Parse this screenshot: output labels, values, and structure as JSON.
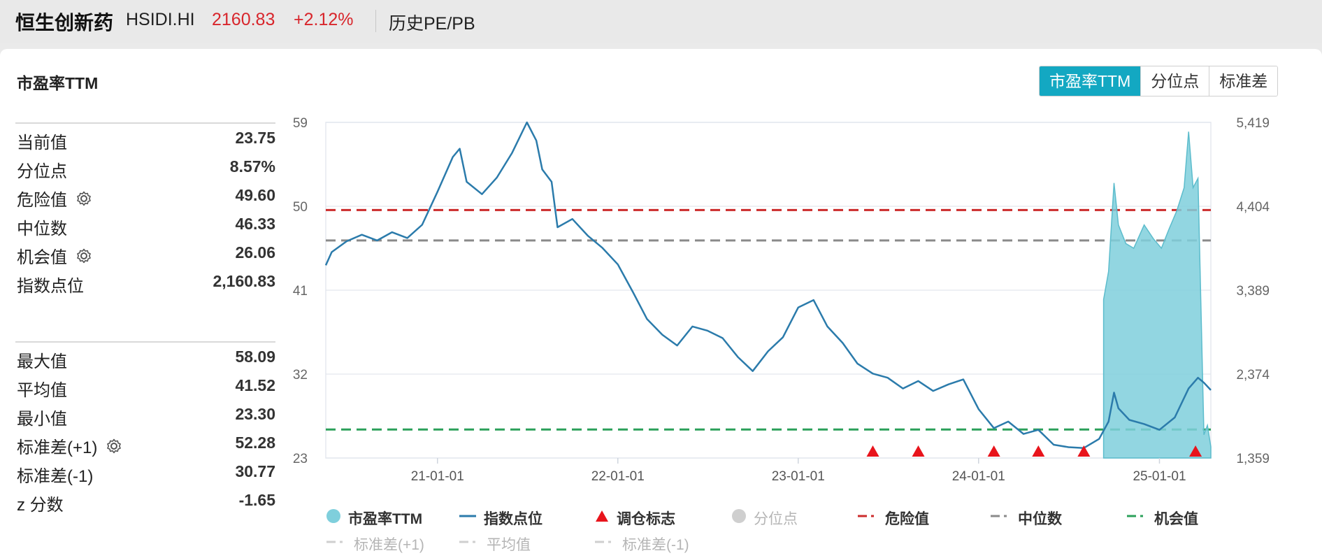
{
  "header": {
    "name": "恒生创新药",
    "code": "HSIDI.HI",
    "price": "2160.83",
    "change": "+2.12%",
    "link": "历史PE/PB"
  },
  "panel": {
    "title": "市盈率TTM",
    "tabs": [
      {
        "label": "市盈率TTM",
        "active": true
      },
      {
        "label": "分位点",
        "active": false
      },
      {
        "label": "标准差",
        "active": false
      }
    ]
  },
  "stats_top": [
    {
      "label": "当前值",
      "value": "23.75",
      "gear": false
    },
    {
      "label": "分位点",
      "value": "8.57%",
      "gear": false
    },
    {
      "label": "危险值",
      "value": "49.60",
      "gear": true
    },
    {
      "label": "中位数",
      "value": "46.33",
      "gear": false
    },
    {
      "label": "机会值",
      "value": "26.06",
      "gear": true
    },
    {
      "label": "指数点位",
      "value": "2,160.83",
      "gear": false
    }
  ],
  "stats_bottom": [
    {
      "label": "最大值",
      "value": "58.09",
      "gear": false
    },
    {
      "label": "平均值",
      "value": "41.52",
      "gear": false
    },
    {
      "label": "最小值",
      "value": "23.30",
      "gear": false
    },
    {
      "label": "标准差(+1)",
      "value": "52.28",
      "gear": true
    },
    {
      "label": "标准差(-1)",
      "value": "30.77",
      "gear": false
    },
    {
      "label": "z 分数",
      "value": "-1.65",
      "gear": false
    }
  ],
  "legend": [
    {
      "label": "市盈率TTM",
      "marker": "dot",
      "color": "#7fcfdc",
      "dim": false
    },
    {
      "label": "指数点位",
      "marker": "line",
      "color": "#2b7bab",
      "dim": false
    },
    {
      "label": "调仓标志",
      "marker": "triangle",
      "color": "#e8141c",
      "dim": false
    },
    {
      "label": "分位点",
      "marker": "dot",
      "color": "#cfcfcf",
      "dim": true
    },
    {
      "label": "危险值",
      "marker": "dash",
      "color": "#cc2b2b",
      "dim": false
    },
    {
      "label": "中位数",
      "marker": "dash",
      "color": "#8a8a8a",
      "dim": false
    },
    {
      "label": "机会值",
      "marker": "dash",
      "color": "#2ba05a",
      "dim": false
    },
    {
      "label": "标准差(+1)",
      "marker": "dash",
      "color": "#cfcfcf",
      "dim": true
    },
    {
      "label": "平均值",
      "marker": "dash",
      "color": "#cfcfcf",
      "dim": true
    },
    {
      "label": "标准差(-1)",
      "marker": "dash",
      "color": "#cfcfcf",
      "dim": true
    }
  ],
  "chart_data": {
    "type": "line",
    "title": "市盈率TTM",
    "x_range": [
      "2020-05-20",
      "2025-04-15"
    ],
    "x_ticks": [
      "21-01-01",
      "22-01-01",
      "23-01-01",
      "24-01-01",
      "25-01-01"
    ],
    "y_left": {
      "ticks": [
        "59",
        "50",
        "41",
        "32",
        "23"
      ],
      "range": [
        23,
        59
      ]
    },
    "y_right": {
      "ticks": [
        "5,419",
        "4,404",
        "3,389",
        "2,374",
        "1,359"
      ],
      "range": [
        1359,
        5419
      ]
    },
    "reference_lines": [
      {
        "name": "危险值",
        "value": 49.6,
        "color": "#cc2b2b"
      },
      {
        "name": "中位数",
        "value": 46.33,
        "color": "#8a8a8a"
      },
      {
        "name": "机会值",
        "value": 26.06,
        "color": "#2ba05a"
      }
    ],
    "series": [
      {
        "name": "指数点位",
        "axis": "right",
        "color": "#2b7bab",
        "points": [
          [
            "2020-05-20",
            3690
          ],
          [
            "2020-06-01",
            3850
          ],
          [
            "2020-07-01",
            3980
          ],
          [
            "2020-08-01",
            4060
          ],
          [
            "2020-09-01",
            3990
          ],
          [
            "2020-10-01",
            4090
          ],
          [
            "2020-11-01",
            4020
          ],
          [
            "2020-12-01",
            4180
          ],
          [
            "2021-01-01",
            4580
          ],
          [
            "2021-02-01",
            5000
          ],
          [
            "2021-02-15",
            5100
          ],
          [
            "2021-03-01",
            4700
          ],
          [
            "2021-04-01",
            4550
          ],
          [
            "2021-05-01",
            4750
          ],
          [
            "2021-06-01",
            5050
          ],
          [
            "2021-07-01",
            5419
          ],
          [
            "2021-07-20",
            5200
          ],
          [
            "2021-08-01",
            4850
          ],
          [
            "2021-08-20",
            4700
          ],
          [
            "2021-09-01",
            4150
          ],
          [
            "2021-10-01",
            4250
          ],
          [
            "2021-11-01",
            4050
          ],
          [
            "2021-12-01",
            3900
          ],
          [
            "2022-01-01",
            3700
          ],
          [
            "2022-02-01",
            3360
          ],
          [
            "2022-03-01",
            3040
          ],
          [
            "2022-04-01",
            2850
          ],
          [
            "2022-05-01",
            2720
          ],
          [
            "2022-06-01",
            2950
          ],
          [
            "2022-07-01",
            2900
          ],
          [
            "2022-08-01",
            2810
          ],
          [
            "2022-09-01",
            2580
          ],
          [
            "2022-10-01",
            2410
          ],
          [
            "2022-11-01",
            2650
          ],
          [
            "2022-12-01",
            2820
          ],
          [
            "2023-01-01",
            3180
          ],
          [
            "2023-02-01",
            3270
          ],
          [
            "2023-03-01",
            2950
          ],
          [
            "2023-04-01",
            2750
          ],
          [
            "2023-05-01",
            2500
          ],
          [
            "2023-06-01",
            2380
          ],
          [
            "2023-07-01",
            2330
          ],
          [
            "2023-08-01",
            2200
          ],
          [
            "2023-09-01",
            2290
          ],
          [
            "2023-10-01",
            2170
          ],
          [
            "2023-11-01",
            2250
          ],
          [
            "2023-12-01",
            2310
          ],
          [
            "2024-01-01",
            1950
          ],
          [
            "2024-02-01",
            1720
          ],
          [
            "2024-03-01",
            1800
          ],
          [
            "2024-04-01",
            1650
          ],
          [
            "2024-05-01",
            1700
          ],
          [
            "2024-06-01",
            1520
          ],
          [
            "2024-07-01",
            1490
          ],
          [
            "2024-08-01",
            1480
          ],
          [
            "2024-09-01",
            1590
          ],
          [
            "2024-09-20",
            1800
          ],
          [
            "2024-10-01",
            2150
          ],
          [
            "2024-10-10",
            1960
          ],
          [
            "2024-11-01",
            1820
          ],
          [
            "2024-12-01",
            1770
          ],
          [
            "2025-01-01",
            1700
          ],
          [
            "2025-02-01",
            1850
          ],
          [
            "2025-03-01",
            2200
          ],
          [
            "2025-03-20",
            2330
          ],
          [
            "2025-04-01",
            2270
          ],
          [
            "2025-04-15",
            2180
          ]
        ]
      },
      {
        "name": "市盈率TTM",
        "axis": "left",
        "color": "#7fcfdc",
        "points": [
          [
            "2024-09-10",
            40
          ],
          [
            "2024-09-20",
            43
          ],
          [
            "2024-10-01",
            52.5
          ],
          [
            "2024-10-10",
            48
          ],
          [
            "2024-10-25",
            46
          ],
          [
            "2024-11-10",
            45.5
          ],
          [
            "2024-12-01",
            48
          ],
          [
            "2024-12-20",
            46.5
          ],
          [
            "2025-01-05",
            45.5
          ],
          [
            "2025-01-20",
            47.5
          ],
          [
            "2025-02-05",
            49.5
          ],
          [
            "2025-02-20",
            52
          ],
          [
            "2025-03-01",
            58
          ],
          [
            "2025-03-10",
            52
          ],
          [
            "2025-03-20",
            53
          ],
          [
            "2025-04-01",
            25.5
          ],
          [
            "2025-04-08",
            26.5
          ],
          [
            "2025-04-15",
            24.2
          ]
        ]
      }
    ],
    "rebalance_markers": [
      "2023-06-01",
      "2023-09-01",
      "2024-02-01",
      "2024-05-01",
      "2024-08-01",
      "2025-03-15"
    ]
  }
}
